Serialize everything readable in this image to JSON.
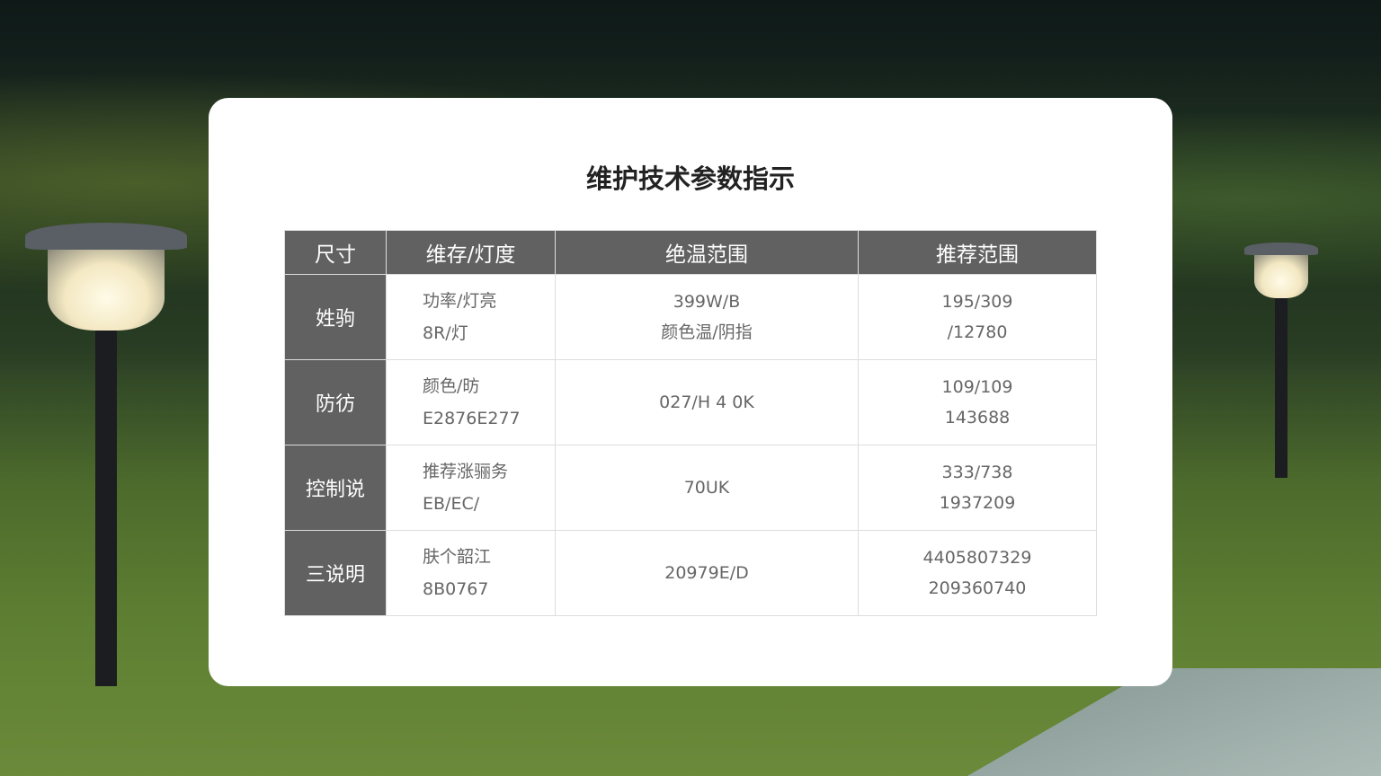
{
  "title": "维护技术参数指示",
  "table": {
    "headers": [
      "尺寸",
      "维存/灯度",
      "绝温范围",
      "推荐范围"
    ],
    "rows": [
      {
        "label": "姓驹",
        "c2": [
          "功率/灯亮",
          "8R/灯"
        ],
        "c3": [
          "399W/B",
          "颜色温/阴指"
        ],
        "c4": [
          "195/309",
          "/12780"
        ]
      },
      {
        "label": "防彷",
        "c2": [
          "颜色/昉",
          "E2876E277"
        ],
        "c3": [
          "027/H 4 0K"
        ],
        "c4": [
          "109/109",
          "143688"
        ]
      },
      {
        "label": "控制说",
        "c2": [
          "推荐涨骊务",
          "EB/EC/"
        ],
        "c3": [
          "70UK"
        ],
        "c4": [
          "333/738",
          "1937209"
        ]
      },
      {
        "label": "三说明",
        "c2": [
          "肤个韶江",
          "8B0767"
        ],
        "c3": [
          "20979E/D"
        ],
        "c4": [
          "4405807329",
          "209360740"
        ]
      }
    ]
  }
}
